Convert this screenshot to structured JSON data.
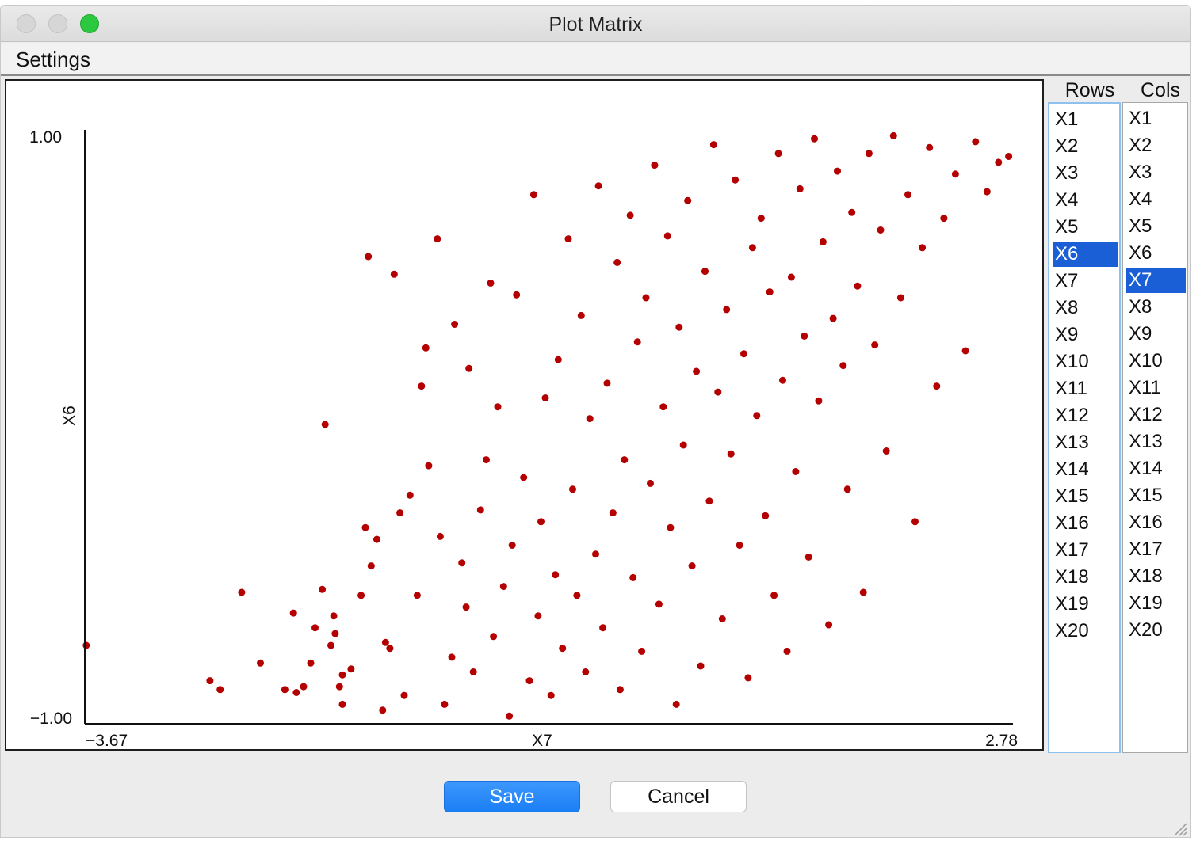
{
  "window": {
    "title": "Plot Matrix",
    "buttons": {
      "close": "close-icon",
      "minimize": "minimize-icon",
      "zoom": "zoom-icon"
    }
  },
  "menu": {
    "settings_label": "Settings"
  },
  "chart_data": {
    "type": "scatter",
    "xlabel": "X7",
    "ylabel": "X6",
    "xlim": [
      -3.67,
      2.78
    ],
    "ylim": [
      -1.0,
      1.0
    ],
    "x_min_label": "−3.67",
    "x_max_label": "2.78",
    "y_min_label": "−1.00",
    "y_max_label": "1.00",
    "point_color": "#b40000",
    "points": [
      [
        -3.66,
        -0.75
      ],
      [
        -2.8,
        -0.87
      ],
      [
        -2.73,
        -0.9
      ],
      [
        -2.58,
        -0.57
      ],
      [
        -2.45,
        -0.81
      ],
      [
        -2.28,
        -0.9
      ],
      [
        -2.2,
        -0.91
      ],
      [
        -2.22,
        -0.64
      ],
      [
        -2.15,
        -0.89
      ],
      [
        -2.1,
        -0.81
      ],
      [
        -2.07,
        -0.69
      ],
      [
        -2.02,
        -0.56
      ],
      [
        -2.0,
        0.0
      ],
      [
        -1.96,
        -0.75
      ],
      [
        -1.94,
        -0.65
      ],
      [
        -1.93,
        -0.71
      ],
      [
        -1.9,
        -0.89
      ],
      [
        -1.88,
        -0.95
      ],
      [
        -1.88,
        -0.85
      ],
      [
        -1.82,
        -0.83
      ],
      [
        -1.75,
        -0.58
      ],
      [
        -1.72,
        -0.35
      ],
      [
        -1.7,
        0.57
      ],
      [
        -1.68,
        -0.48
      ],
      [
        -1.64,
        -0.39
      ],
      [
        -1.6,
        -0.97
      ],
      [
        -1.58,
        -0.74
      ],
      [
        -1.55,
        -0.76
      ],
      [
        -1.52,
        0.51
      ],
      [
        -1.48,
        -0.3
      ],
      [
        -1.45,
        -0.92
      ],
      [
        -1.41,
        -0.24
      ],
      [
        -1.36,
        -0.58
      ],
      [
        -1.33,
        0.13
      ],
      [
        -1.3,
        0.26
      ],
      [
        -1.28,
        -0.14
      ],
      [
        -1.22,
        0.63
      ],
      [
        -1.2,
        -0.38
      ],
      [
        -1.17,
        -0.95
      ],
      [
        -1.12,
        -0.79
      ],
      [
        -1.1,
        0.34
      ],
      [
        -1.05,
        -0.47
      ],
      [
        -1.02,
        -0.62
      ],
      [
        -1.0,
        0.19
      ],
      [
        -0.97,
        -0.84
      ],
      [
        -0.92,
        -0.29
      ],
      [
        -0.88,
        -0.12
      ],
      [
        -0.85,
        0.48
      ],
      [
        -0.83,
        -0.72
      ],
      [
        -0.8,
        0.06
      ],
      [
        -0.76,
        -0.55
      ],
      [
        -0.72,
        -0.99
      ],
      [
        -0.7,
        -0.41
      ],
      [
        -0.67,
        0.44
      ],
      [
        -0.62,
        -0.18
      ],
      [
        -0.58,
        -0.87
      ],
      [
        -0.55,
        0.78
      ],
      [
        -0.52,
        -0.65
      ],
      [
        -0.5,
        -0.33
      ],
      [
        -0.47,
        0.09
      ],
      [
        -0.43,
        -0.92
      ],
      [
        -0.4,
        -0.51
      ],
      [
        -0.38,
        0.22
      ],
      [
        -0.35,
        -0.76
      ],
      [
        -0.31,
        0.63
      ],
      [
        -0.28,
        -0.22
      ],
      [
        -0.25,
        -0.58
      ],
      [
        -0.22,
        0.37
      ],
      [
        -0.19,
        -0.84
      ],
      [
        -0.16,
        0.02
      ],
      [
        -0.12,
        -0.44
      ],
      [
        -0.1,
        0.81
      ],
      [
        -0.07,
        -0.69
      ],
      [
        -0.04,
        0.14
      ],
      [
        0.0,
        -0.3
      ],
      [
        0.03,
        0.55
      ],
      [
        0.05,
        -0.9
      ],
      [
        0.08,
        -0.12
      ],
      [
        0.12,
        0.71
      ],
      [
        0.14,
        -0.52
      ],
      [
        0.17,
        0.28
      ],
      [
        0.2,
        -0.77
      ],
      [
        0.23,
        0.43
      ],
      [
        0.26,
        -0.2
      ],
      [
        0.29,
        0.88
      ],
      [
        0.32,
        -0.61
      ],
      [
        0.35,
        0.06
      ],
      [
        0.38,
        0.64
      ],
      [
        0.4,
        -0.35
      ],
      [
        0.44,
        -0.95
      ],
      [
        0.46,
        0.33
      ],
      [
        0.49,
        -0.07
      ],
      [
        0.52,
        0.76
      ],
      [
        0.55,
        -0.48
      ],
      [
        0.58,
        0.18
      ],
      [
        0.61,
        -0.82
      ],
      [
        0.64,
        0.52
      ],
      [
        0.67,
        -0.26
      ],
      [
        0.7,
        0.95
      ],
      [
        0.73,
        0.11
      ],
      [
        0.76,
        -0.66
      ],
      [
        0.79,
        0.39
      ],
      [
        0.82,
        -0.1
      ],
      [
        0.85,
        0.83
      ],
      [
        0.88,
        -0.41
      ],
      [
        0.91,
        0.24
      ],
      [
        0.94,
        -0.86
      ],
      [
        0.97,
        0.6
      ],
      [
        1.0,
        0.03
      ],
      [
        1.03,
        0.7
      ],
      [
        1.06,
        -0.31
      ],
      [
        1.09,
        0.45
      ],
      [
        1.12,
        -0.58
      ],
      [
        1.15,
        0.92
      ],
      [
        1.18,
        0.15
      ],
      [
        1.21,
        -0.77
      ],
      [
        1.24,
        0.5
      ],
      [
        1.27,
        -0.16
      ],
      [
        1.3,
        0.8
      ],
      [
        1.33,
        0.3
      ],
      [
        1.36,
        -0.45
      ],
      [
        1.4,
        0.97
      ],
      [
        1.43,
        0.08
      ],
      [
        1.46,
        0.62
      ],
      [
        1.5,
        -0.68
      ],
      [
        1.53,
        0.36
      ],
      [
        1.56,
        0.86
      ],
      [
        1.6,
        0.2
      ],
      [
        1.63,
        -0.22
      ],
      [
        1.66,
        0.72
      ],
      [
        1.7,
        0.47
      ],
      [
        1.74,
        -0.57
      ],
      [
        1.78,
        0.92
      ],
      [
        1.82,
        0.27
      ],
      [
        1.86,
        0.66
      ],
      [
        1.9,
        -0.09
      ],
      [
        1.95,
        0.98
      ],
      [
        2.0,
        0.43
      ],
      [
        2.05,
        0.78
      ],
      [
        2.1,
        -0.33
      ],
      [
        2.15,
        0.6
      ],
      [
        2.2,
        0.94
      ],
      [
        2.25,
        0.13
      ],
      [
        2.3,
        0.7
      ],
      [
        2.38,
        0.85
      ],
      [
        2.45,
        0.25
      ],
      [
        2.52,
        0.96
      ],
      [
        2.6,
        0.79
      ],
      [
        2.68,
        0.89
      ],
      [
        2.75,
        0.91
      ]
    ]
  },
  "lists": {
    "rows_header": "Rows",
    "cols_header": "Cols",
    "rows": [
      "X1",
      "X2",
      "X3",
      "X4",
      "X5",
      "X6",
      "X7",
      "X8",
      "X9",
      "X10",
      "X11",
      "X12",
      "X13",
      "X14",
      "X15",
      "X16",
      "X17",
      "X18",
      "X19",
      "X20"
    ],
    "cols": [
      "X1",
      "X2",
      "X3",
      "X4",
      "X5",
      "X6",
      "X7",
      "X8",
      "X9",
      "X10",
      "X11",
      "X12",
      "X13",
      "X14",
      "X15",
      "X16",
      "X17",
      "X18",
      "X19",
      "X20"
    ],
    "rows_selected": "X6",
    "cols_selected": "X7"
  },
  "footer": {
    "save_label": "Save",
    "cancel_label": "Cancel"
  }
}
